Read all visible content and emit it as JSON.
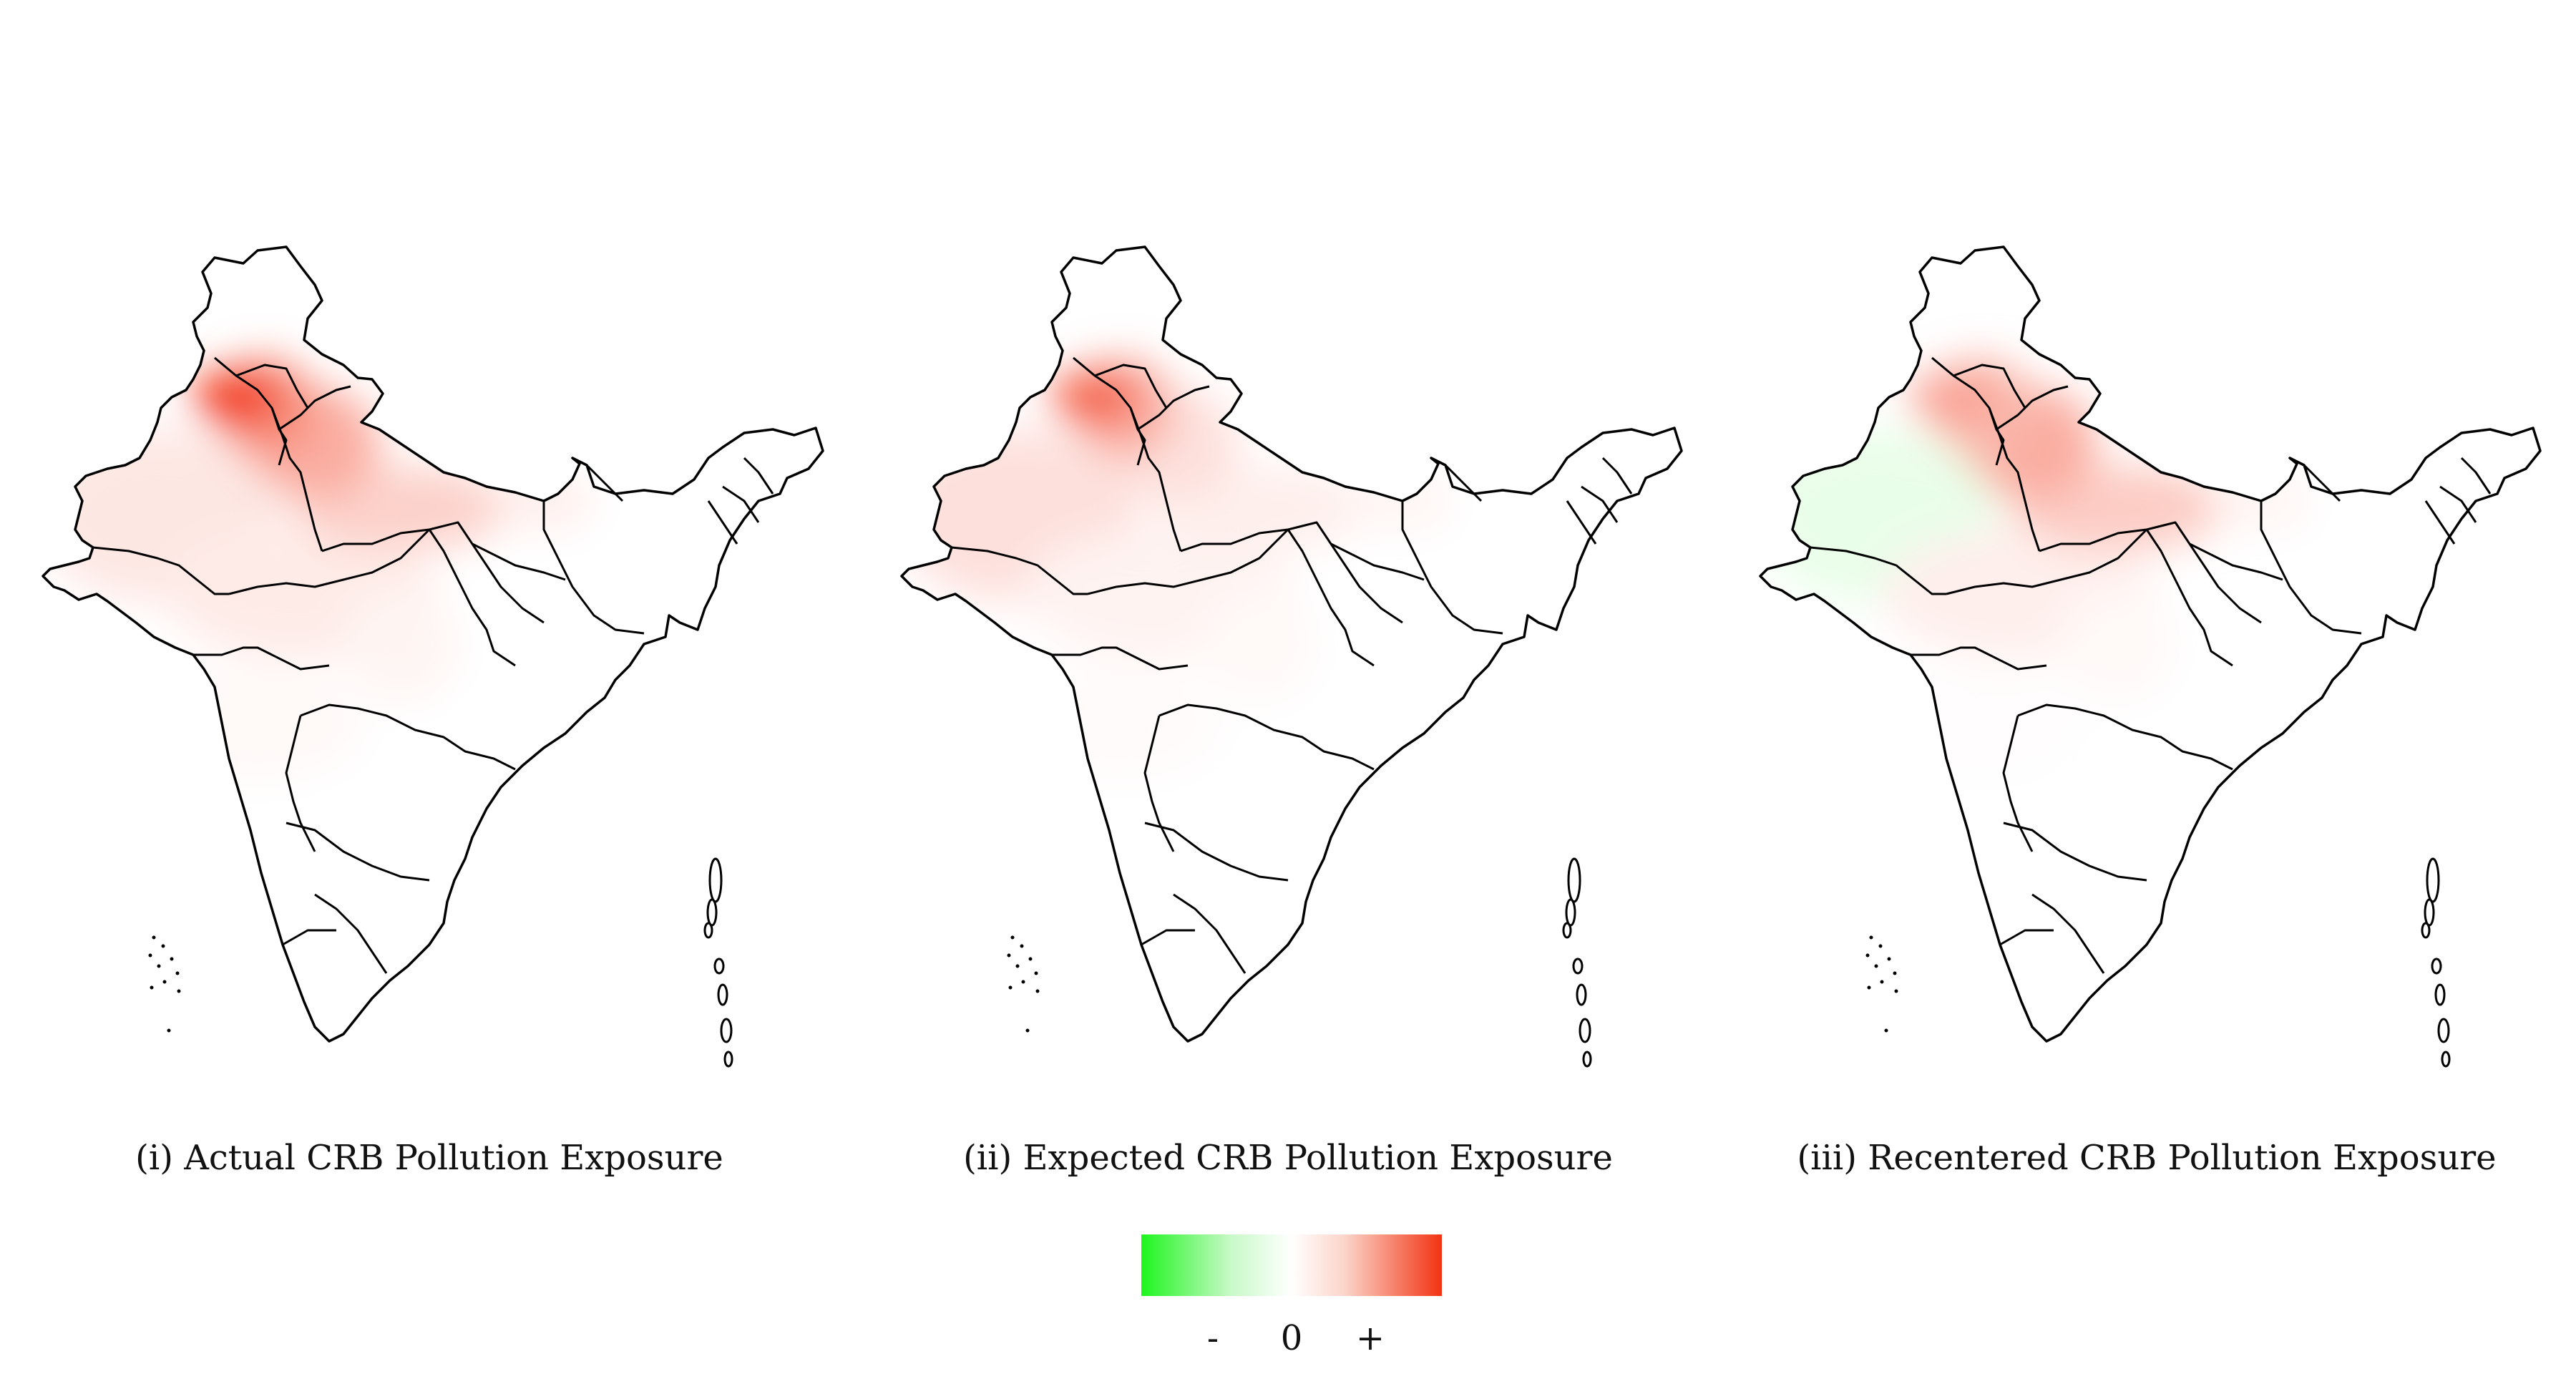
{
  "maps": [
    {
      "id": "actual",
      "caption": "(i) Actual CRB Pollution Exposure",
      "intensity": {
        "punjab": 0.95,
        "haryana": 0.55,
        "west_up": 0.4,
        "east_up": 0.22,
        "rajasthan": 0.12,
        "mp": 0.1,
        "bihar": 0.08,
        "chhattisgarh": 0.05,
        "maharashtra": 0.03
      }
    },
    {
      "id": "expected",
      "caption": "(ii) Expected CRB Pollution Exposure",
      "intensity": {
        "punjab": 0.75,
        "haryana": 0.4,
        "west_up": 0.15,
        "east_up": 0.08,
        "rajasthan": 0.15,
        "mp": 0.06,
        "bihar": 0.05,
        "chhattisgarh": 0.03,
        "maharashtra": 0.02
      }
    },
    {
      "id": "recentered",
      "caption": "(iii) Recentered CRB Pollution Exposure",
      "intensity": {
        "punjab": 0.45,
        "haryana": 0.35,
        "west_up": 0.4,
        "east_up": 0.25,
        "rajasthan": -0.1,
        "mp": 0.08,
        "bihar": 0.05,
        "chhattisgarh": 0.03,
        "maharashtra": 0.01
      }
    }
  ],
  "legend": {
    "colors": {
      "negative": "#1ef51e",
      "zero": "#ffffff",
      "positive": "#f23313"
    },
    "ticks": [
      {
        "label": "-",
        "value": -1
      },
      {
        "label": "0",
        "value": 0
      },
      {
        "label": "+",
        "value": 1
      }
    ]
  }
}
